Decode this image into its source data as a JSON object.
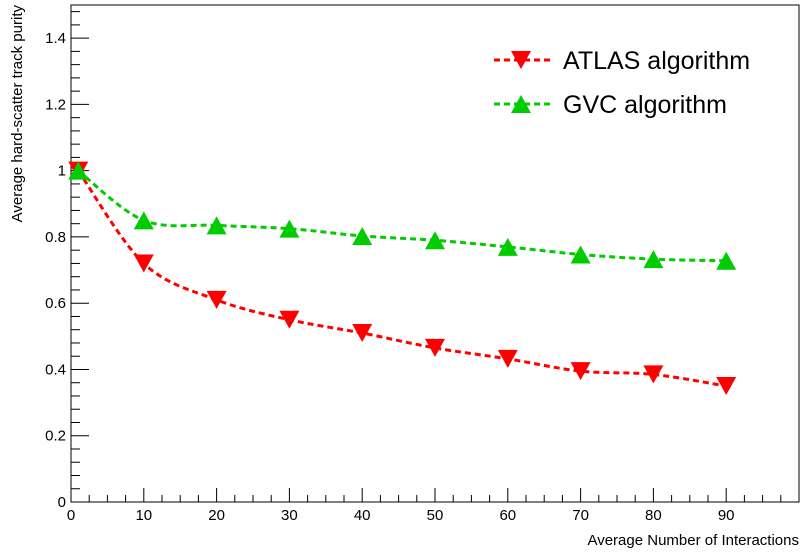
{
  "chart_data": {
    "type": "line",
    "xlabel": "Average Number of Interactions",
    "ylabel": "Average hard-scatter track purity",
    "xlim": [
      0,
      100
    ],
    "ylim": [
      0,
      1.5
    ],
    "x_ticks": [
      0,
      10,
      20,
      30,
      40,
      50,
      60,
      70,
      80,
      90
    ],
    "y_ticks": [
      0,
      0.2,
      0.4,
      0.6,
      0.8,
      1,
      1.2,
      1.4
    ],
    "x_tick_labels": [
      "0",
      "10",
      "20",
      "30",
      "40",
      "50",
      "60",
      "70",
      "80",
      "90"
    ],
    "y_tick_labels": [
      "0",
      "0.2",
      "0.4",
      "0.6",
      "0.8",
      "1",
      "1.2",
      "1.4"
    ],
    "grid": false,
    "legend_position": "top-right",
    "series": [
      {
        "name": "ATLAS algorithm",
        "color": "#ff0000",
        "marker": "triangle-down",
        "line_style": "dashed",
        "x": [
          1,
          10,
          20,
          30,
          40,
          50,
          60,
          70,
          80,
          90
        ],
        "y": [
          1.0,
          0.72,
          0.61,
          0.55,
          0.51,
          0.465,
          0.432,
          0.395,
          0.385,
          0.35
        ]
      },
      {
        "name": "GVC algorithm",
        "color": "#00cc00",
        "marker": "triangle-up",
        "line_style": "dashed",
        "x": [
          1,
          10,
          20,
          30,
          40,
          50,
          60,
          70,
          80,
          90
        ],
        "y": [
          1.0,
          0.85,
          0.835,
          0.825,
          0.803,
          0.79,
          0.77,
          0.747,
          0.733,
          0.728
        ]
      }
    ]
  }
}
